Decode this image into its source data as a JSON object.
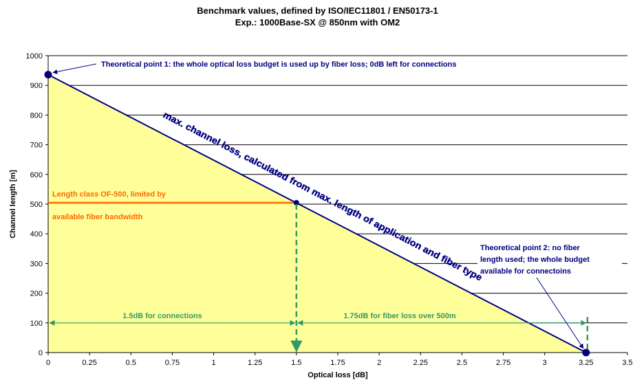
{
  "chart_data": {
    "type": "line",
    "title": "Benchmark values, defined by ISO/IEC11801 / EN50173-1",
    "subtitle": "Exp.: 1000Base-SX @ 850nm with OM2",
    "xlabel": "Optical loss [dB]",
    "ylabel": "Channel length [m]",
    "xlim": [
      0,
      3.5
    ],
    "ylim": [
      0,
      1000
    ],
    "xticks": [
      "0",
      "0.25",
      "0.5",
      "0.75",
      "1",
      "1.25",
      "1.5",
      "1.75",
      "2",
      "2.25",
      "2.5",
      "2.75",
      "3",
      "3.25",
      "3.5"
    ],
    "yticks": [
      "0",
      "100",
      "200",
      "300",
      "400",
      "500",
      "600",
      "700",
      "800",
      "900",
      "1000"
    ],
    "grid": "horizontal",
    "series": [
      {
        "name": "max. channel loss, calculated from max. length of application and fiber type",
        "x": [
          0,
          3.25
        ],
        "y": [
          936,
          0
        ],
        "color": "#000080"
      },
      {
        "name": "Length class OF-500, limited by available fiber bandwidth",
        "x": [
          0,
          1.5
        ],
        "y": [
          500,
          500
        ],
        "color": "#ff6600"
      }
    ],
    "points": [
      {
        "x": 0,
        "y": 936
      },
      {
        "x": 1.5,
        "y": 500
      },
      {
        "x": 3.25,
        "y": 0
      }
    ],
    "annotations": {
      "point1": "Theoretical point 1: the whole optical loss budget is used up by fiber loss; 0dB left for connections",
      "diagonal": "max. channel loss, calculated from max. length of application and fiber type",
      "length_class_line1": "Length class OF-500, limited by",
      "length_class_line2": "available fiber bandwidth",
      "point2_line1": "Theoretical point 2: no fiber",
      "point2_line2": "length used; the whole budget",
      "point2_line3": "available for connectoins",
      "connections": "1.5dB for connections",
      "fiber_loss": "1.75dB for fiber loss over 500m"
    },
    "colors": {
      "fill": "#ffff99",
      "navy": "#000080",
      "orange": "#ff6600",
      "green": "#339966"
    }
  }
}
